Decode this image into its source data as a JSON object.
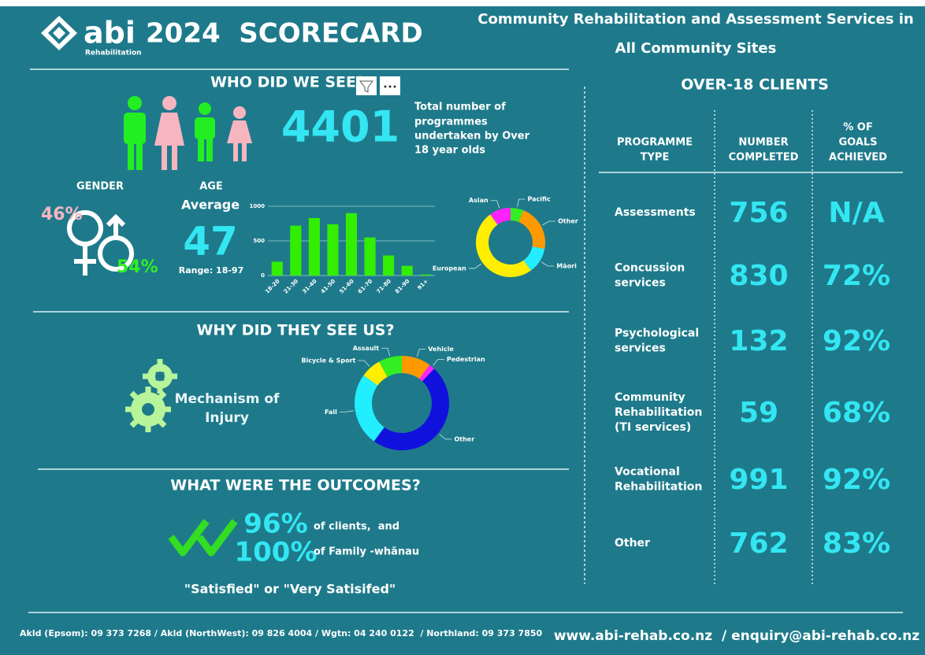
{
  "header": {
    "logo": "abi",
    "logo_sub": "Rehabilitation",
    "title": "2024  SCORECARD",
    "subtitle_1": "Community Rehabilitation and Assessment Services in",
    "subtitle_2": "All Community Sites"
  },
  "who": {
    "heading": "WHO DID WE SEE?",
    "total": "4401",
    "total_text": [
      "Total number of",
      "programmes",
      "undertaken by Over",
      "18 year olds"
    ],
    "gender_label": "GENDER",
    "female": "46%",
    "male": "54%",
    "age_label": "AGE",
    "average_label": "Average",
    "average": "47",
    "range": "Range: 18-97"
  },
  "why": {
    "heading": "WHY DID THEY SEE US?",
    "mechanism": [
      "Mechanism of",
      "Injury"
    ]
  },
  "outcomes": {
    "heading": "WHAT WERE THE OUTCOMES?",
    "clients_pct": "96%",
    "clients_text": "of clients,  and",
    "family_pct": "100%",
    "family_text": "of Family -whānau",
    "quote": "\"Satisfied\" or \"Very Satisifed\""
  },
  "table": {
    "title": "OVER-18 CLIENTS",
    "columns": [
      [
        "PROGRAMME",
        "TYPE"
      ],
      [
        "NUMBER",
        "COMPLETED"
      ],
      [
        "% OF",
        "GOALS",
        "ACHIEVED"
      ]
    ],
    "rows": [
      [
        [
          "Assessments"
        ],
        "756",
        "N/A"
      ],
      [
        [
          "Concussion",
          "services"
        ],
        "830",
        "72%"
      ],
      [
        [
          "Psychological",
          "services"
        ],
        "132",
        "92%"
      ],
      [
        [
          "Community",
          "Rehabilitation",
          "(TI services)"
        ],
        "59",
        "68%"
      ],
      [
        [
          "Vocational",
          "Rehabilitation"
        ],
        "991",
        "92%"
      ],
      [
        [
          "Other"
        ],
        "762",
        "83%"
      ]
    ]
  },
  "footer": {
    "phones": "Akld (Epsom): 09 373 7268 / Akld (NorthWest): 09 826 4004 / Wgtn: 04 240 0122  / Northland: 09 373 7850",
    "web": "www.abi-rehab.co.nz  / enquiry@abi-rehab.co.nz"
  },
  "chart_data": [
    {
      "type": "bar",
      "categories": [
        "18-20",
        "21-30",
        "31-40",
        "41-50",
        "51-60",
        "61-70",
        "71-80",
        "81-90",
        "91+"
      ],
      "values": [
        200,
        720,
        830,
        740,
        900,
        550,
        290,
        140,
        15
      ],
      "color": "#33ee00",
      "ylim": [
        0,
        1000
      ],
      "yticks": [
        0,
        500,
        1000
      ],
      "grid": true
    },
    {
      "type": "donut",
      "categories": [
        "Pacific",
        "Other",
        "Māori",
        "European",
        "Asian"
      ],
      "values": [
        6,
        22,
        12,
        50,
        10
      ],
      "colors": [
        "#33ee22",
        "#ff9900",
        "#22eeff",
        "#ffee00",
        "#ff22ff"
      ]
    },
    {
      "type": "donut",
      "categories": [
        "Vehicle",
        "Pedestrian",
        "Other",
        "Fall",
        "Bicycle & Sport",
        "Assault"
      ],
      "values": [
        10,
        2,
        48,
        25,
        7,
        8
      ],
      "colors": [
        "#ff9900",
        "#ff22ff",
        "#1111dd",
        "#22eeff",
        "#ffee00",
        "#33ee22"
      ]
    }
  ]
}
